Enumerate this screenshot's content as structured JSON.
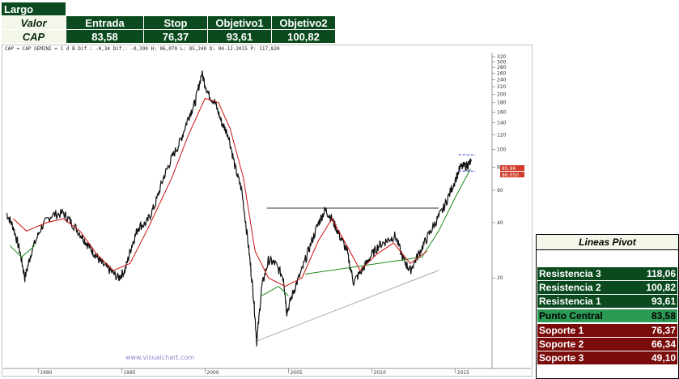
{
  "trade": {
    "direction": "Largo",
    "headers": [
      "Valor",
      "Entrada",
      "Stop",
      "Objetivo1",
      "Objetivo2"
    ],
    "values": [
      "CAP",
      "83,58",
      "76,37",
      "93,61",
      "100,82"
    ]
  },
  "chart_header": "CAP = CAP GEMINI = 1 d B Dif.: -0,34 Dif.: -0,390 H: 86,070 L: 85,240 D: 04-12-2015 P: 117,820",
  "watermark": "www.visualchart.com",
  "price_labels": {
    "upper": "85.96",
    "lower": "86.050"
  },
  "pivot": {
    "title": "Lineas Pivot",
    "rows": [
      {
        "label": "Resistencia 3",
        "value": "118,06",
        "kind": "res"
      },
      {
        "label": "Resistencia 2",
        "value": "100,82",
        "kind": "res"
      },
      {
        "label": "Resistencia 1",
        "value": "93,61",
        "kind": "res"
      },
      {
        "label": "Punto Central",
        "value": "83,58",
        "kind": "cen"
      },
      {
        "label": "Soporte 1",
        "value": "76,37",
        "kind": "sup"
      },
      {
        "label": "Soporte 2",
        "value": "66,34",
        "kind": "sup"
      },
      {
        "label": "Soporte 3",
        "value": "49,10",
        "kind": "sup"
      }
    ]
  },
  "chart_data": {
    "type": "line",
    "log_scale": true,
    "xlim": [
      1988.0,
      2017.2
    ],
    "ylim": [
      6.5,
      330
    ],
    "x_ticks": [
      "1990",
      "1995",
      "2000",
      "2005",
      "2010",
      "2015"
    ],
    "x_tick_values": [
      1990,
      1995,
      2000,
      2005,
      2010,
      2015
    ],
    "y_ticks": [
      320,
      300,
      280,
      260,
      240,
      220,
      200,
      180,
      160,
      140,
      120,
      100,
      80,
      60,
      40,
      20
    ],
    "price": [
      [
        1988.1,
        45
      ],
      [
        1988.5,
        38
      ],
      [
        1988.9,
        28
      ],
      [
        1989.2,
        20
      ],
      [
        1989.6,
        28
      ],
      [
        1990.2,
        38
      ],
      [
        1990.8,
        44
      ],
      [
        1991.5,
        45
      ],
      [
        1992.0,
        40
      ],
      [
        1992.6,
        34
      ],
      [
        1993.0,
        30
      ],
      [
        1993.4,
        27
      ],
      [
        1993.8,
        24
      ],
      [
        1994.3,
        22
      ],
      [
        1994.8,
        20
      ],
      [
        1995.2,
        22
      ],
      [
        1995.6,
        30
      ],
      [
        1996.0,
        38
      ],
      [
        1996.5,
        40
      ],
      [
        1997.0,
        50
      ],
      [
        1997.5,
        70
      ],
      [
        1998.0,
        90
      ],
      [
        1998.5,
        110
      ],
      [
        1999.0,
        150
      ],
      [
        1999.4,
        180
      ],
      [
        1999.8,
        260
      ],
      [
        2000.2,
        200
      ],
      [
        2000.6,
        180
      ],
      [
        2001.0,
        140
      ],
      [
        2001.4,
        120
      ],
      [
        2001.8,
        80
      ],
      [
        2002.2,
        60
      ],
      [
        2002.6,
        30
      ],
      [
        2002.9,
        16
      ],
      [
        2003.1,
        9
      ],
      [
        2003.4,
        18
      ],
      [
        2003.8,
        25
      ],
      [
        2004.2,
        24
      ],
      [
        2004.7,
        20
      ],
      [
        2004.9,
        13
      ],
      [
        2005.3,
        17
      ],
      [
        2005.8,
        22
      ],
      [
        2006.3,
        30
      ],
      [
        2006.8,
        40
      ],
      [
        2007.2,
        47
      ],
      [
        2007.6,
        42
      ],
      [
        2008.0,
        35
      ],
      [
        2008.5,
        28
      ],
      [
        2008.9,
        19
      ],
      [
        2009.4,
        22
      ],
      [
        2009.9,
        26
      ],
      [
        2010.4,
        30
      ],
      [
        2010.9,
        32
      ],
      [
        2011.4,
        34
      ],
      [
        2011.9,
        25
      ],
      [
        2012.3,
        22
      ],
      [
        2012.8,
        27
      ],
      [
        2013.3,
        33
      ],
      [
        2013.8,
        40
      ],
      [
        2014.3,
        48
      ],
      [
        2014.8,
        62
      ],
      [
        2015.3,
        80
      ],
      [
        2015.7,
        82
      ],
      [
        2015.95,
        86
      ]
    ],
    "ma_red": [
      [
        1988.5,
        42
      ],
      [
        1989.3,
        36
      ],
      [
        1990.5,
        40
      ],
      [
        1991.5,
        42
      ],
      [
        1992.5,
        36
      ],
      [
        1993.5,
        27
      ],
      [
        1994.5,
        22
      ],
      [
        1995.5,
        24
      ],
      [
        1996.5,
        36
      ],
      [
        1998.0,
        70
      ],
      [
        1999.0,
        120
      ],
      [
        2000.0,
        190
      ],
      [
        2000.8,
        180
      ],
      [
        2001.5,
        130
      ],
      [
        2002.3,
        70
      ],
      [
        2003.0,
        28
      ],
      [
        2003.8,
        20
      ],
      [
        2004.8,
        18
      ],
      [
        2005.8,
        20
      ],
      [
        2006.8,
        32
      ],
      [
        2007.6,
        42
      ],
      [
        2008.5,
        30
      ],
      [
        2009.3,
        22
      ],
      [
        2010.3,
        27
      ],
      [
        2011.3,
        31
      ],
      [
        2012.3,
        24
      ],
      [
        2013.3,
        28
      ]
    ],
    "ma_green": [
      [
        1988.3,
        30
      ],
      [
        1989.0,
        26
      ],
      [
        1989.8,
        30
      ],
      [
        2003.4,
        16
      ],
      [
        2004.4,
        18
      ],
      [
        2005.0,
        16
      ],
      [
        2006.0,
        21
      ],
      [
        2013.0,
        26
      ],
      [
        2014.0,
        36
      ],
      [
        2015.0,
        55
      ],
      [
        2015.9,
        78
      ]
    ],
    "resistance_line": [
      [
        2003.7,
        48
      ],
      [
        2014.0,
        48
      ]
    ],
    "support_line": [
      [
        2003.0,
        9
      ],
      [
        2014.0,
        22
      ]
    ],
    "target_lines": {
      "x_start": 2015.2,
      "x_end": 2016.2,
      "upper": 93.61,
      "lower": 76.37
    }
  }
}
